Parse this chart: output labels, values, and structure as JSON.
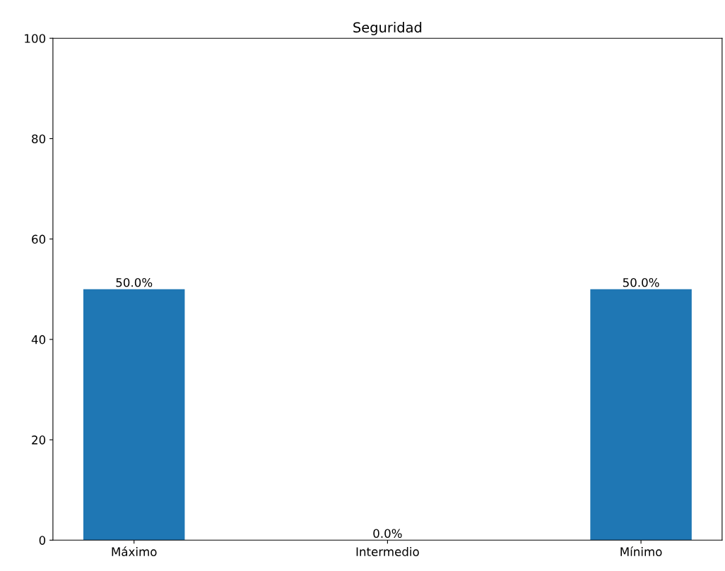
{
  "chart_data": {
    "type": "bar",
    "title": "Seguridad",
    "categories": [
      "Máximo",
      "Intermedio",
      "Mínimo"
    ],
    "values": [
      50,
      0,
      50
    ],
    "value_labels": [
      "50.0%",
      "0.0%",
      "50.0%"
    ],
    "color": "#1f77b4",
    "ylim": [
      0,
      100
    ],
    "yticks": [
      0,
      20,
      40,
      60,
      80,
      100
    ],
    "grid": false,
    "legend": false
  }
}
